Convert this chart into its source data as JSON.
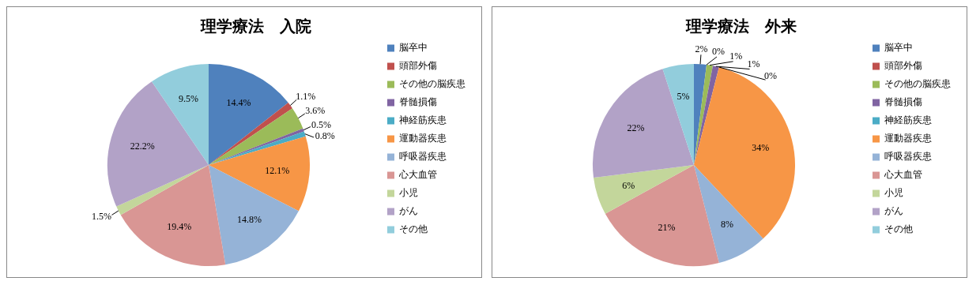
{
  "chart_data": [
    {
      "type": "pie",
      "title": "理学療法　入院",
      "categories": [
        "脳卒中",
        "頭部外傷",
        "その他の脳疾患",
        "脊髄損傷",
        "神経筋疾患",
        "運動器疾患",
        "呼吸器疾患",
        "心大血管",
        "小児",
        "がん",
        "その他"
      ],
      "values": [
        14.4,
        1.1,
        3.6,
        0.5,
        0.8,
        12.1,
        14.8,
        19.4,
        1.5,
        22.2,
        9.5
      ],
      "colors": [
        "#4f81bd",
        "#c0504d",
        "#9bbb59",
        "#8064a2",
        "#4bacc6",
        "#f79646",
        "#95b3d7",
        "#d99694",
        "#c3d69b",
        "#b2a2c7",
        "#92cddc"
      ],
      "value_labels": [
        "14.4%",
        "1.1%",
        "3.6%",
        "0.5%",
        "0.8%",
        "12.1%",
        "14.8%",
        "19.4%",
        "1.5%",
        "22.2%",
        "9.5%"
      ],
      "legend": "right"
    },
    {
      "type": "pie",
      "title": "理学療法　外来",
      "categories": [
        "脳卒中",
        "頭部外傷",
        "その他の脳疾患",
        "脊髄損傷",
        "神経筋疾患",
        "運動器疾患",
        "呼吸器疾患",
        "心大血管",
        "小児",
        "がん",
        "その他"
      ],
      "values": [
        2,
        0,
        1,
        1,
        0,
        34,
        8,
        21,
        6,
        22,
        5
      ],
      "colors": [
        "#4f81bd",
        "#c0504d",
        "#9bbb59",
        "#8064a2",
        "#4bacc6",
        "#f79646",
        "#95b3d7",
        "#d99694",
        "#c3d69b",
        "#b2a2c7",
        "#92cddc"
      ],
      "value_labels": [
        "2%",
        "0%",
        "1%",
        "1%",
        "0%",
        "34%",
        "8%",
        "21%",
        "6%",
        "22%",
        "5%"
      ],
      "legend": "right"
    }
  ]
}
